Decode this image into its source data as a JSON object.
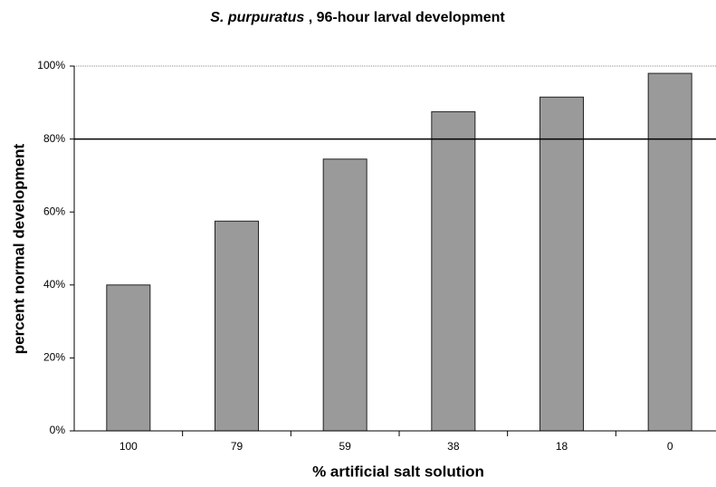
{
  "chart_data": {
    "type": "bar",
    "title": {
      "species": "S. purpuratus",
      "rest": " , 96-hour larval development"
    },
    "x_label": "% artificial salt solution",
    "y_label": "percent normal development",
    "categories": [
      "100",
      "79",
      "59",
      "38",
      "18",
      "0"
    ],
    "values": [
      40,
      57.5,
      74.5,
      87.5,
      91.5,
      98
    ],
    "color": "#9a9a9a",
    "reference_line": 80,
    "ylim": [
      0,
      100
    ],
    "yticks": [
      {
        "value": 0,
        "label": "0%"
      },
      {
        "value": 20,
        "label": "20%"
      },
      {
        "value": 40,
        "label": "40%"
      },
      {
        "value": 60,
        "label": "60%"
      },
      {
        "value": 80,
        "label": "80%"
      },
      {
        "value": 100,
        "label": "100%"
      }
    ]
  }
}
